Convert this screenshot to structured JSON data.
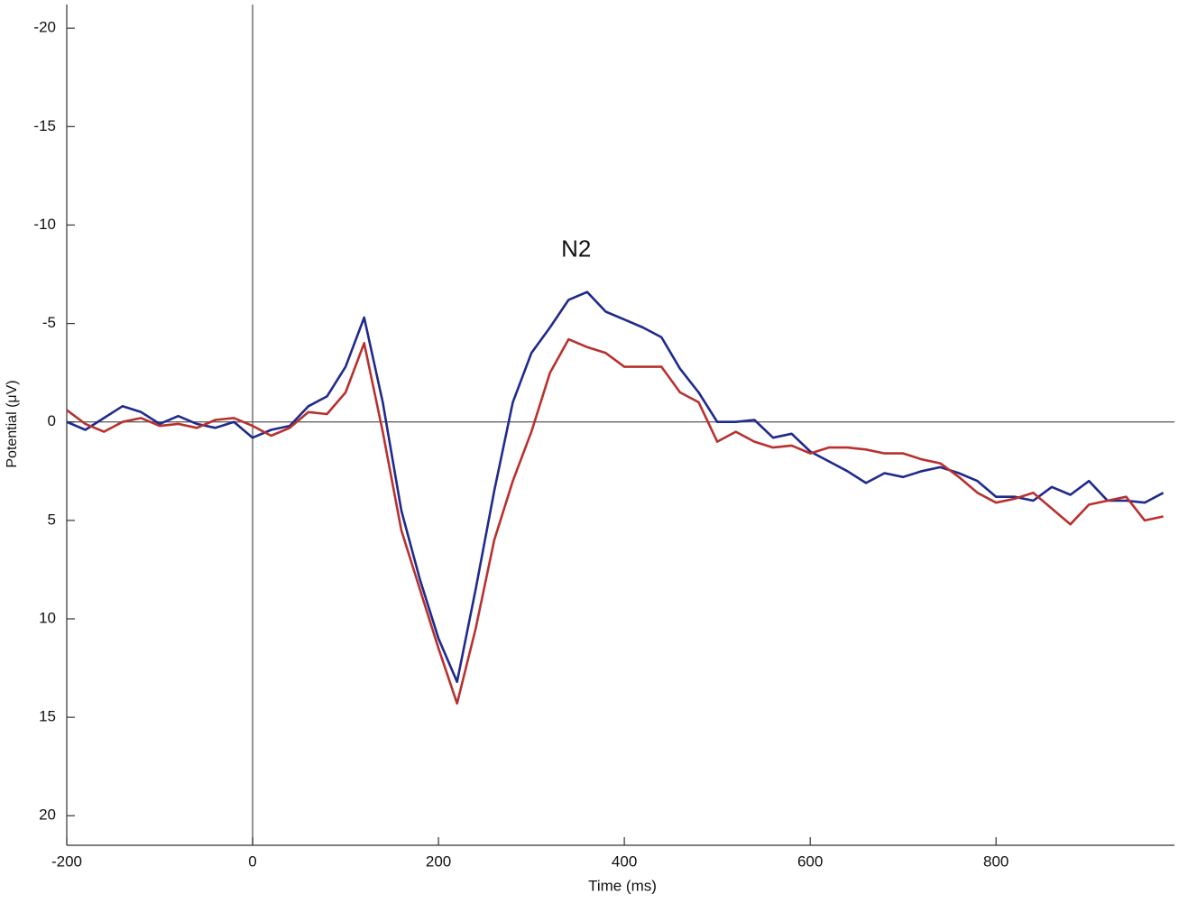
{
  "chart_data": {
    "type": "line",
    "xlabel": "Time (ms)",
    "ylabel": "Potential (μV)",
    "annotation": {
      "text": "N2",
      "x": 355,
      "y": -8.7
    },
    "x": [
      -200,
      -180,
      -160,
      -140,
      -120,
      -100,
      -80,
      -60,
      -40,
      -20,
      0,
      20,
      40,
      60,
      80,
      100,
      120,
      140,
      160,
      180,
      200,
      220,
      240,
      260,
      280,
      300,
      320,
      340,
      360,
      380,
      400,
      420,
      440,
      460,
      480,
      500,
      520,
      540,
      560,
      580,
      600,
      620,
      640,
      660,
      680,
      700,
      720,
      740,
      760,
      780,
      800,
      820,
      840,
      860,
      880,
      900,
      920,
      940,
      960,
      980
    ],
    "series": [
      {
        "color": "#1f2a8c",
        "values": [
          0,
          0.4,
          -0.2,
          -0.8,
          -0.5,
          0.1,
          -0.3,
          0.1,
          0.3,
          0.0,
          0.8,
          0.4,
          0.2,
          -0.8,
          -1.3,
          -2.8,
          -5.3,
          -1.0,
          4.5,
          8.0,
          11.0,
          13.2,
          8.5,
          3.5,
          -1.0,
          -3.5,
          -4.8,
          -6.2,
          -6.6,
          -5.6,
          -5.2,
          -4.8,
          -4.3,
          -2.7,
          -1.5,
          0.0,
          0.0,
          -0.1,
          0.8,
          0.6,
          1.5,
          2.0,
          2.5,
          3.1,
          2.6,
          2.8,
          2.5,
          2.3,
          2.6,
          3.0,
          3.8,
          3.8,
          4.0,
          3.3,
          3.7,
          3.0,
          4.0,
          4.0,
          4.1,
          3.6
        ]
      },
      {
        "color": "#b8312f",
        "values": [
          -0.6,
          0.1,
          0.5,
          0,
          -0.2,
          0.2,
          0.1,
          0.3,
          -0.1,
          -0.2,
          0.2,
          0.7,
          0.3,
          -0.5,
          -0.4,
          -1.5,
          -4.0,
          0.5,
          5.5,
          8.5,
          11.5,
          14.3,
          10.5,
          6.0,
          3.0,
          0.5,
          -2.5,
          -4.2,
          -3.8,
          -3.5,
          -2.8,
          -2.8,
          -2.8,
          -1.5,
          -1.0,
          1.0,
          0.5,
          1.0,
          1.3,
          1.2,
          1.6,
          1.3,
          1.3,
          1.4,
          1.6,
          1.6,
          1.9,
          2.1,
          2.8,
          3.6,
          4.1,
          3.9,
          3.6,
          4.4,
          5.2,
          4.2,
          4.0,
          3.8,
          5.0,
          4.8
        ]
      }
    ],
    "xlim": [
      -200,
      992
    ],
    "xticks": [
      -200,
      0,
      200,
      400,
      600,
      800
    ],
    "ylim": [
      21.5,
      -21.2
    ],
    "yticks": [
      -20,
      -15,
      -10,
      -5,
      0,
      5,
      10,
      15,
      20
    ],
    "zero_lines": true
  }
}
